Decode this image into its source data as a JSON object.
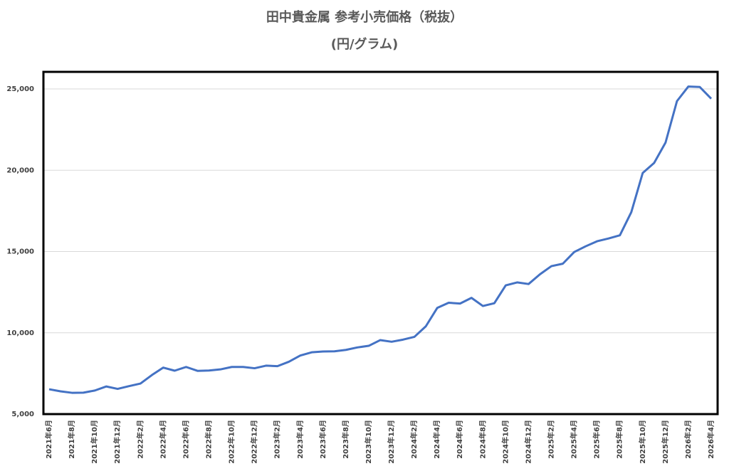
{
  "chart_data": {
    "type": "line",
    "title": "田中貴金属 参考小売価格（税抜）",
    "subtitle": "(円/グラム)",
    "categories": [
      "2021年6月",
      null,
      "2021年8月",
      null,
      "2021年10月",
      null,
      "2021年12月",
      null,
      "2022年2月",
      null,
      "2022年4月",
      null,
      "2022年6月",
      null,
      "2022年8月",
      null,
      "2022年10月",
      null,
      "2022年12月",
      null,
      "2023年2月",
      null,
      "2023年4月",
      null,
      "2023年6月",
      null,
      "2023年8月",
      null,
      "2023年10月",
      null,
      "2023年12月",
      null,
      "2024年2月",
      null,
      "2024年4月",
      null,
      "2024年6月",
      null,
      "2024年8月",
      null,
      "2024年10月",
      null,
      "2024年12月",
      null,
      "2025年2月",
      null,
      "2025年4月",
      null,
      "2025年6月",
      null,
      "2025年8月",
      null,
      "2025年10月",
      null,
      "2025年12月",
      null,
      "2026年2月",
      null,
      "2026年4月"
    ],
    "values": [
      6530,
      6400,
      6310,
      6320,
      6450,
      6700,
      6550,
      6720,
      6880,
      7400,
      7860,
      7670,
      7900,
      7660,
      7680,
      7750,
      7900,
      7900,
      7820,
      7980,
      7950,
      8220,
      8600,
      8800,
      8850,
      8860,
      8950,
      9100,
      9200,
      9550,
      9450,
      9580,
      9750,
      10400,
      11530,
      11850,
      11800,
      12150,
      11650,
      11820,
      12920,
      13100,
      13000,
      13600,
      14100,
      14250,
      14970,
      15320,
      15630,
      15800,
      16000,
      17420,
      19830,
      20450,
      21700,
      24250,
      25150,
      25120,
      24400
    ],
    "color": "#4472c4",
    "ylim": [
      5000,
      26000
    ],
    "yticks": [
      {
        "value": 5000,
        "label": "5,000"
      },
      {
        "value": 10000,
        "label": "10,000"
      },
      {
        "value": 15000,
        "label": "15,000"
      },
      {
        "value": 20000,
        "label": "20,000"
      },
      {
        "value": 25000,
        "label": "25,000"
      }
    ],
    "grid": true
  }
}
